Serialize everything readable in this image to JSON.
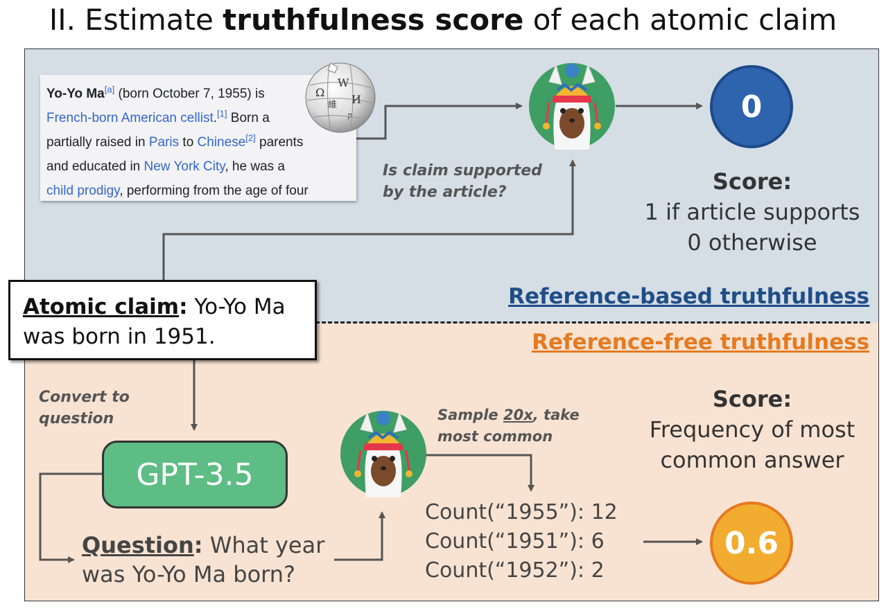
{
  "title": {
    "prefix": "II. Estimate ",
    "bold": "truthfulness score",
    "suffix": " of each atomic claim"
  },
  "wiki": {
    "name": "Yo-Yo Ma",
    "ref_a": "[a]",
    "born": " (born October 7, 1955) is",
    "link_cellist": "French-born American cellist",
    "ref_1": "[1]",
    "born_after": " Born a",
    "raised": "partially raised in ",
    "link_paris": "Paris",
    "to": " to ",
    "link_chinese": "Chinese",
    "ref_2": "[2]",
    "parents": " parents",
    "educated": "and educated in ",
    "link_nyc": "New York City",
    "he_was": ", he was a",
    "link_prodigy": "child prodigy",
    "performing": ", performing from the age of four",
    "globe_icon": "wikipedia-globe-icon"
  },
  "reference_based": {
    "question_line1": "Is claim supported",
    "question_line2": "by the article?",
    "score_value": "0",
    "score_title": "Score:",
    "score_line1": "1 if article supports",
    "score_line2": "0 otherwise",
    "section_label": "Reference-based truthfulness",
    "color": "#1f4e87",
    "circle_color": "#2e63ad"
  },
  "atomic_claim": {
    "label": "Atomic claim",
    "colon": ":",
    "text_line1": " Yo-Yo Ma",
    "text_line2": "was born in 1951."
  },
  "reference_free": {
    "section_label": "Reference-free truthfulness",
    "convert_line1": "Convert to",
    "convert_line2": "question",
    "model": "GPT-3.5",
    "question_label": "Question",
    "question_colon": ":",
    "question_line1": " What year",
    "question_line2": "was Yo-Yo Ma born?",
    "sample_prefix": "Sample ",
    "sample_count": "20x",
    "sample_suffix": ", take",
    "sample_line2": "most common",
    "counts": [
      "Count(“1955”): 12",
      "Count(“1951”): 6",
      "Count(“1952”): 2"
    ],
    "score_value": "0.6",
    "score_title": "Score:",
    "score_line1": "Frequency of most",
    "score_line2": "common answer",
    "color": "#e57a20",
    "circle_color": "#f2ac2f"
  },
  "icons": {
    "llama": "llama-icon"
  }
}
